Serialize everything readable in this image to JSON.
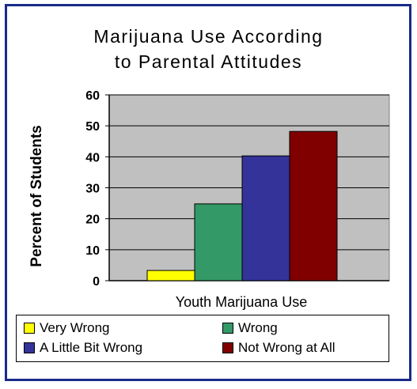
{
  "chart_data": {
    "type": "bar",
    "title_lines": [
      "Marijuana Use According",
      "to Parental Attitudes"
    ],
    "xlabel": "Youth Marijuana Use",
    "ylabel": "Percent of Students",
    "ylim": [
      0,
      60
    ],
    "yticks": [
      0,
      10,
      20,
      30,
      40,
      50,
      60
    ],
    "grid": true,
    "legend_position": "bottom",
    "series": [
      {
        "name": "Very Wrong",
        "value": 3.3,
        "color": "#ffff00"
      },
      {
        "name": "Wrong",
        "value": 24.8,
        "color": "#339966"
      },
      {
        "name": "A Little Bit Wrong",
        "value": 40.3,
        "color": "#333399"
      },
      {
        "name": "Not Wrong at All",
        "value": 48.2,
        "color": "#800000"
      }
    ]
  }
}
